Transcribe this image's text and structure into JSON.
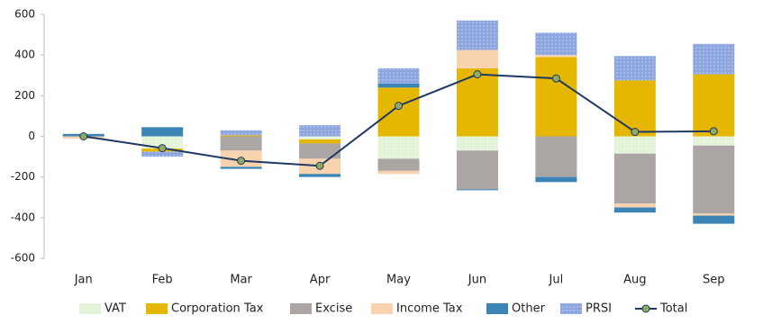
{
  "chart_data": {
    "type": "bar",
    "stacked": true,
    "categories": [
      "Jan",
      "Feb",
      "Mar",
      "Apr",
      "May",
      "Jun",
      "Jul",
      "Aug",
      "Sep"
    ],
    "series": [
      {
        "name": "VAT",
        "color": "#e3f3d8",
        "values": [
          0,
          -60,
          0,
          -15,
          -110,
          -70,
          0,
          -85,
          -45
        ]
      },
      {
        "name": "Corporation Tax",
        "color": "#e6b700",
        "values": [
          0,
          -15,
          5,
          -20,
          240,
          335,
          390,
          275,
          305
        ]
      },
      {
        "name": "Excise",
        "color": "#aba6a4",
        "values": [
          0,
          0,
          -70,
          -75,
          -60,
          -190,
          -200,
          -245,
          -335
        ]
      },
      {
        "name": "Income Tax",
        "color": "#f8d3ae",
        "values": [
          -12,
          0,
          -80,
          -75,
          -15,
          90,
          10,
          -20,
          -10
        ]
      },
      {
        "name": "Other",
        "color": "#3a84b6",
        "values": [
          12,
          45,
          -10,
          -15,
          20,
          -5,
          -25,
          -25,
          -40
        ]
      },
      {
        "name": "PRSI",
        "color": "#8ea6e0",
        "values": [
          0,
          -25,
          25,
          55,
          75,
          145,
          110,
          120,
          150
        ]
      },
      {
        "name": "Total",
        "type": "line",
        "color": "#1f3864",
        "marker_color": "#8fab62",
        "values": [
          0,
          -58,
          -120,
          -145,
          150,
          305,
          285,
          22,
          25
        ]
      }
    ],
    "ylim": [
      -600,
      600
    ],
    "yticks": [
      -600,
      -400,
      -200,
      0,
      200,
      400,
      600
    ],
    "legend": "bottom"
  }
}
